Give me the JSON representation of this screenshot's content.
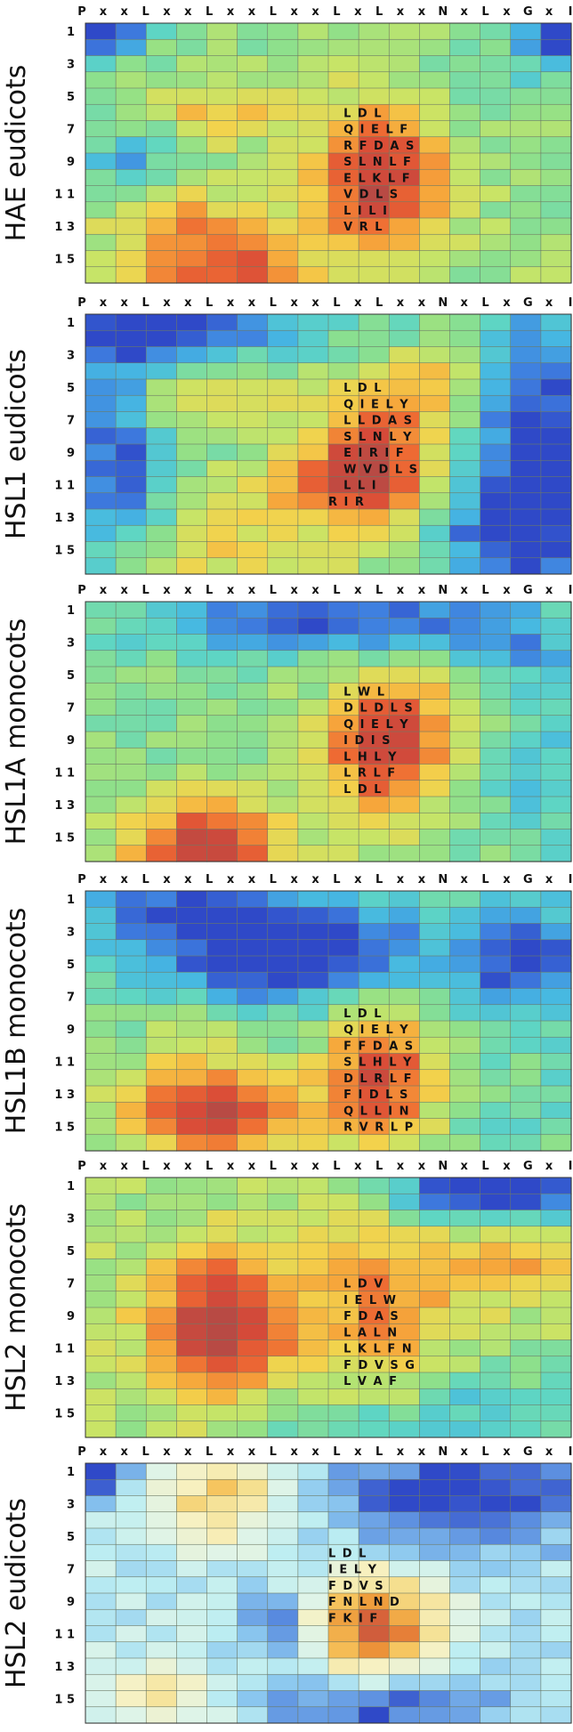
{
  "figure": {
    "column_labels": [
      "P",
      "x",
      "x",
      "L",
      "x",
      "x",
      "L",
      "x",
      "x",
      "L",
      "x",
      "x",
      "L",
      "x",
      "L",
      "x",
      "x",
      "N",
      "x",
      "L",
      "x",
      "G",
      "x",
      "I"
    ],
    "row_labels": [
      "1",
      "3",
      "5",
      "7",
      "9",
      "1 1",
      "1 3",
      "1 5"
    ],
    "color_scale": [
      "#2f49c8",
      "#3f7fe0",
      "#46b8e2",
      "#5fd6c3",
      "#8fe08a",
      "#c9e466",
      "#f3d24c",
      "#f6a63b",
      "#ee6a33",
      "#d84a38",
      "#b84a44"
    ],
    "pale_scale": [
      "#2f49c8",
      "#5b8ee0",
      "#8bc7ef",
      "#bdeef2",
      "#dff4e8",
      "#f7f1c2",
      "#f5df8e",
      "#f6c25a",
      "#ee9a3a",
      "#e06b36",
      "#c75540"
    ]
  },
  "chart_data": [
    {
      "type": "heatmap",
      "title": "HAE eudicots",
      "rows": 16,
      "cols": 16,
      "scale": "normal",
      "seed": 11,
      "base": 0.42,
      "blobs": [
        {
          "r": 9.0,
          "c": 9.2,
          "sr": 3.2,
          "sc": 1.5,
          "a": 0.55
        },
        {
          "r": 14.5,
          "c": 4.0,
          "sr": 2.2,
          "sc": 2.0,
          "a": 0.45
        },
        {
          "r": 5.0,
          "c": 4.0,
          "sr": 1.2,
          "sc": 1.5,
          "a": 0.22
        },
        {
          "r": 11.0,
          "c": 2.0,
          "sr": 1.5,
          "sc": 1.2,
          "a": 0.18
        },
        {
          "r": 0.0,
          "c": 0.0,
          "sr": 1.2,
          "sc": 1.0,
          "a": -0.5
        },
        {
          "r": 0.0,
          "c": 15.0,
          "sr": 1.4,
          "sc": 0.7,
          "a": -0.55
        },
        {
          "r": 8.0,
          "c": 1.0,
          "sr": 1.5,
          "sc": 1.0,
          "a": -0.25
        },
        {
          "r": 3.0,
          "c": 12.5,
          "sr": 2.0,
          "sc": 1.5,
          "a": -0.12
        }
      ],
      "sequences": [
        {
          "row": 5,
          "col": 8.5,
          "text": "L D L"
        },
        {
          "row": 6,
          "col": 8.5,
          "text": "Q I E L  F"
        },
        {
          "row": 7,
          "col": 8.5,
          "text": "R F D A S"
        },
        {
          "row": 8,
          "col": 8.5,
          "text": "S L N L F"
        },
        {
          "row": 9,
          "col": 8.5,
          "text": "E L K L F"
        },
        {
          "row": 10,
          "col": 8.5,
          "text": "V D L S"
        },
        {
          "row": 11,
          "col": 8.5,
          "text": "L I L I"
        },
        {
          "row": 12,
          "col": 8.5,
          "text": "V R L"
        }
      ]
    },
    {
      "type": "heatmap",
      "title": "HSL1 eudicots",
      "rows": 16,
      "cols": 16,
      "scale": "normal",
      "seed": 23,
      "base": 0.38,
      "blobs": [
        {
          "r": 8.5,
          "c": 9.0,
          "sr": 3.0,
          "sc": 1.4,
          "a": 0.55
        },
        {
          "r": 10.0,
          "c": 7.0,
          "sr": 1.2,
          "sc": 2.0,
          "a": 0.3
        },
        {
          "r": 5.0,
          "c": 3.5,
          "sr": 1.3,
          "sc": 2.0,
          "a": 0.22
        },
        {
          "r": 14.0,
          "c": 4.0,
          "sr": 2.0,
          "sc": 2.5,
          "a": 0.2
        },
        {
          "r": 4.0,
          "c": 11.0,
          "sr": 1.5,
          "sc": 1.0,
          "a": 0.25
        },
        {
          "r": 0.5,
          "c": 2.0,
          "sr": 1.2,
          "sc": 3.0,
          "a": -0.45
        },
        {
          "r": 8.0,
          "c": 0.5,
          "sr": 5.0,
          "sc": 1.2,
          "a": -0.35
        },
        {
          "r": 8.0,
          "c": 14.5,
          "sr": 6.0,
          "sc": 1.5,
          "a": -0.45
        },
        {
          "r": 13.0,
          "c": 13.0,
          "sr": 2.0,
          "sc": 1.5,
          "a": -0.25
        }
      ],
      "sequences": [
        {
          "row": 4,
          "col": 8.5,
          "text": "L D L"
        },
        {
          "row": 5,
          "col": 8.5,
          "text": "Q I E L Y"
        },
        {
          "row": 6,
          "col": 8.5,
          "text": "L L D A S"
        },
        {
          "row": 7,
          "col": 8.5,
          "text": "S L N L Y"
        },
        {
          "row": 8,
          "col": 8.5,
          "text": "E I R I F"
        },
        {
          "row": 9,
          "col": 8.5,
          "text": "W V D L S"
        },
        {
          "row": 10,
          "col": 8.5,
          "text": "L L I"
        },
        {
          "row": 11,
          "col": 8.0,
          "text": "R I R"
        }
      ]
    },
    {
      "type": "heatmap",
      "title": "HSL1A monocots",
      "rows": 16,
      "cols": 16,
      "scale": "normal",
      "seed": 37,
      "base": 0.4,
      "blobs": [
        {
          "r": 8.5,
          "c": 9.3,
          "sr": 3.0,
          "sc": 1.3,
          "a": 0.55
        },
        {
          "r": 14.5,
          "c": 3.5,
          "sr": 2.0,
          "sc": 1.8,
          "a": 0.55
        },
        {
          "r": 6.0,
          "c": 11.5,
          "sr": 2.5,
          "sc": 1.3,
          "a": 0.15
        },
        {
          "r": 0.5,
          "c": 7.0,
          "sr": 1.5,
          "sc": 4.0,
          "a": -0.4
        },
        {
          "r": 2.0,
          "c": 13.0,
          "sr": 2.0,
          "sc": 2.0,
          "a": -0.2
        },
        {
          "r": 10.0,
          "c": 14.5,
          "sr": 5.0,
          "sc": 1.2,
          "a": -0.15
        }
      ],
      "sequences": [
        {
          "row": 5,
          "col": 8.5,
          "text": "L W L"
        },
        {
          "row": 6,
          "col": 8.5,
          "text": "D L D L S"
        },
        {
          "row": 7,
          "col": 8.5,
          "text": "Q I E L Y"
        },
        {
          "row": 8,
          "col": 8.5,
          "text": "I D I S"
        },
        {
          "row": 9,
          "col": 8.5,
          "text": "L H L Y"
        },
        {
          "row": 10,
          "col": 8.5,
          "text": "L R L F"
        },
        {
          "row": 11,
          "col": 8.5,
          "text": "L D L"
        }
      ]
    },
    {
      "type": "heatmap",
      "title": "HSL1B monocots",
      "rows": 16,
      "cols": 16,
      "scale": "normal",
      "seed": 51,
      "base": 0.34,
      "blobs": [
        {
          "r": 11.0,
          "c": 9.2,
          "sr": 3.0,
          "sc": 1.3,
          "a": 0.6
        },
        {
          "r": 13.5,
          "c": 4.0,
          "sr": 1.8,
          "sc": 2.2,
          "a": 0.5
        },
        {
          "r": 11.0,
          "c": 3.0,
          "sr": 3.0,
          "sc": 2.0,
          "a": 0.2
        },
        {
          "r": 3.0,
          "c": 6.0,
          "sr": 2.2,
          "sc": 3.0,
          "a": -0.5
        },
        {
          "r": 3.5,
          "c": 14.0,
          "sr": 2.0,
          "sc": 1.5,
          "a": -0.4
        },
        {
          "r": 0.5,
          "c": 2.0,
          "sr": 1.2,
          "sc": 2.0,
          "a": -0.2
        }
      ],
      "sequences": [
        {
          "row": 7,
          "col": 8.5,
          "text": "L D L"
        },
        {
          "row": 8,
          "col": 8.5,
          "text": "Q I E L Y"
        },
        {
          "row": 9,
          "col": 8.5,
          "text": "F F D A S"
        },
        {
          "row": 10,
          "col": 8.5,
          "text": "S L H L Y"
        },
        {
          "row": 11,
          "col": 8.5,
          "text": "D L R L F"
        },
        {
          "row": 12,
          "col": 8.5,
          "text": "F I D L S"
        },
        {
          "row": 13,
          "col": 8.5,
          "text": "Q L L I N"
        },
        {
          "row": 14,
          "col": 8.5,
          "text": "R V R L P"
        }
      ]
    },
    {
      "type": "heatmap",
      "title": "HSL2 monocots",
      "rows": 16,
      "cols": 16,
      "scale": "normal",
      "seed": 67,
      "base": 0.45,
      "blobs": [
        {
          "r": 8.5,
          "c": 4.0,
          "sr": 3.0,
          "sc": 1.6,
          "a": 0.6
        },
        {
          "r": 7.5,
          "c": 9.2,
          "sr": 3.5,
          "sc": 1.5,
          "a": 0.3
        },
        {
          "r": 5.0,
          "c": 13.5,
          "sr": 1.5,
          "sc": 2.0,
          "a": 0.25
        },
        {
          "r": 0.3,
          "c": 13.0,
          "sr": 1.3,
          "sc": 2.2,
          "a": -0.6
        },
        {
          "r": 14.0,
          "c": 13.0,
          "sr": 2.0,
          "sc": 2.5,
          "a": -0.2
        },
        {
          "r": 14.5,
          "c": 7.0,
          "sr": 1.2,
          "sc": 2.0,
          "a": -0.15
        }
      ],
      "sequences": [
        {
          "row": 6,
          "col": 8.5,
          "text": "L D V"
        },
        {
          "row": 7,
          "col": 8.5,
          "text": "I E L W"
        },
        {
          "row": 8,
          "col": 8.5,
          "text": "F D A S"
        },
        {
          "row": 9,
          "col": 8.5,
          "text": "L A L N"
        },
        {
          "row": 10,
          "col": 8.5,
          "text": "L K L F  N"
        },
        {
          "row": 11,
          "col": 8.5,
          "text": "F D V S  G"
        },
        {
          "row": 12,
          "col": 8.5,
          "text": "L V A F"
        }
      ]
    },
    {
      "type": "heatmap",
      "title": "HSL2 eudicots",
      "rows": 16,
      "cols": 16,
      "scale": "pale",
      "seed": 83,
      "base": 0.3,
      "blobs": [
        {
          "r": 9.5,
          "c": 9.0,
          "sr": 2.2,
          "sc": 1.5,
          "a": 0.65
        },
        {
          "r": 1.5,
          "c": 4.0,
          "sr": 2.0,
          "sc": 1.5,
          "a": 0.35
        },
        {
          "r": 14.0,
          "c": 2.0,
          "sr": 1.5,
          "sc": 1.5,
          "a": 0.25
        },
        {
          "r": 1.5,
          "c": 12.0,
          "sr": 2.5,
          "sc": 3.0,
          "a": -0.35
        },
        {
          "r": 14.5,
          "c": 9.0,
          "sr": 1.5,
          "sc": 3.0,
          "a": -0.3
        },
        {
          "r": 9.5,
          "c": 6.0,
          "sr": 1.5,
          "sc": 1.0,
          "a": -0.25
        },
        {
          "r": 0.0,
          "c": 0.0,
          "sr": 1.0,
          "sc": 0.8,
          "a": -0.4
        }
      ],
      "sequences": [
        {
          "row": 5,
          "col": 8.0,
          "text": "L  D  L"
        },
        {
          "row": 6,
          "col": 8.0,
          "text": "I E L Y"
        },
        {
          "row": 7,
          "col": 8.0,
          "text": "F D V S"
        },
        {
          "row": 8,
          "col": 8.0,
          "text": "F N L N D"
        },
        {
          "row": 9,
          "col": 8.0,
          "text": "F K I F"
        }
      ]
    }
  ]
}
